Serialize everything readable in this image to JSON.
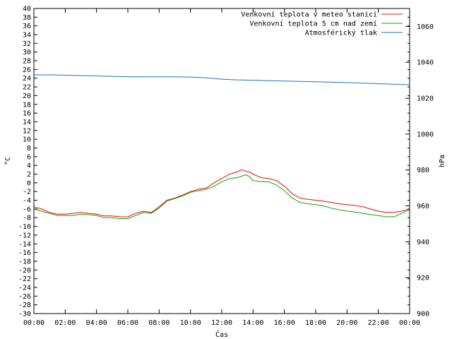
{
  "chart_data": {
    "type": "line",
    "xlabel": "Čas",
    "ylabel_left": "°C",
    "ylabel_right": "hPa",
    "x_ticks": [
      "00:00",
      "02:00",
      "04:00",
      "06:00",
      "08:00",
      "10:00",
      "12:00",
      "14:00",
      "16:00",
      "18:00",
      "20:00",
      "22:00",
      "00:00"
    ],
    "x_range_hours": [
      0,
      24
    ],
    "ylim_left": [
      -30,
      40
    ],
    "y_left_step": 2,
    "ylim_right": [
      900,
      1070
    ],
    "y_right_ticks": [
      900,
      920,
      940,
      960,
      980,
      1000,
      1020,
      1040,
      1060
    ],
    "grid": false,
    "legend_position": "top-right",
    "series": [
      {
        "name": "Venkovní teplota v meteo stanici",
        "axis": "left",
        "color": "#ff0000",
        "x": [
          0,
          0.5,
          1,
          1.5,
          2,
          2.5,
          3,
          3.5,
          4,
          4.5,
          5,
          5.5,
          6,
          6.5,
          7,
          7.5,
          8,
          8.5,
          9,
          9.5,
          10,
          10.5,
          11,
          11.5,
          12,
          12.5,
          13,
          13.25,
          13.5,
          13.75,
          14,
          14.5,
          15,
          15.5,
          16,
          16.5,
          17,
          17.5,
          18,
          18.5,
          19,
          19.5,
          20,
          20.5,
          21,
          21.5,
          22,
          22.5,
          23,
          23.5,
          24
        ],
        "y": [
          -5.5,
          -6,
          -6.8,
          -7.2,
          -7.2,
          -7,
          -6.8,
          -7,
          -7.2,
          -7.6,
          -7.6,
          -7.8,
          -7.8,
          -7,
          -6.5,
          -6.8,
          -5.5,
          -4,
          -3.5,
          -2.8,
          -2,
          -1.5,
          -1.2,
          0,
          1,
          2,
          2.5,
          3,
          2.7,
          2.5,
          2,
          1.2,
          1,
          0.5,
          -0.8,
          -2.5,
          -3.5,
          -3.8,
          -4,
          -4.2,
          -4.5,
          -4.8,
          -5,
          -5.2,
          -5.5,
          -6,
          -6.5,
          -6.8,
          -6.8,
          -6.5,
          -6
        ]
      },
      {
        "name": "Venkovní teplota 5 cm nad zemí",
        "axis": "left",
        "color": "#00aa00",
        "x": [
          0,
          0.5,
          1,
          1.5,
          2,
          2.5,
          3,
          3.5,
          4,
          4.5,
          5,
          5.5,
          6,
          6.5,
          7,
          7.5,
          8,
          8.5,
          9,
          9.5,
          10,
          10.5,
          11,
          11.5,
          12,
          12.5,
          13,
          13.25,
          13.5,
          13.75,
          14,
          14.5,
          15,
          15.5,
          16,
          16.5,
          17,
          17.5,
          18,
          18.5,
          19,
          19.5,
          20,
          20.5,
          21,
          21.5,
          22,
          22.5,
          23,
          23.5,
          24
        ],
        "y": [
          -6,
          -6.5,
          -7,
          -7.5,
          -7.5,
          -7.5,
          -7.2,
          -7.3,
          -7.5,
          -8,
          -8,
          -8.2,
          -8.2,
          -7.5,
          -6.8,
          -7,
          -5.8,
          -4.2,
          -3.6,
          -3,
          -2.2,
          -1.8,
          -1.5,
          -0.8,
          0.2,
          1,
          1.2,
          1.5,
          1.8,
          1.5,
          0.5,
          0.3,
          0.2,
          -0.5,
          -1.8,
          -3.5,
          -4.5,
          -4.8,
          -5,
          -5.3,
          -5.8,
          -6.2,
          -6.5,
          -6.7,
          -7,
          -7.3,
          -7.5,
          -7.8,
          -7.8,
          -7,
          -6.2
        ]
      },
      {
        "name": "Atmosférický tlak",
        "axis": "right",
        "color": "#1a74c4",
        "x": [
          0,
          1,
          2,
          3,
          4,
          5,
          6,
          7,
          8,
          9,
          10,
          11,
          12,
          13,
          14,
          15,
          16,
          17,
          18,
          19,
          20,
          21,
          22,
          23,
          24
        ],
        "y": [
          1033,
          1033,
          1032.8,
          1032.6,
          1032.4,
          1032.2,
          1032,
          1031.9,
          1031.9,
          1031.9,
          1031.8,
          1031.3,
          1030.6,
          1030.2,
          1030,
          1029.8,
          1029.6,
          1029.4,
          1029.2,
          1028.9,
          1028.7,
          1028.4,
          1028.1,
          1027.8,
          1027.5
        ]
      }
    ]
  }
}
